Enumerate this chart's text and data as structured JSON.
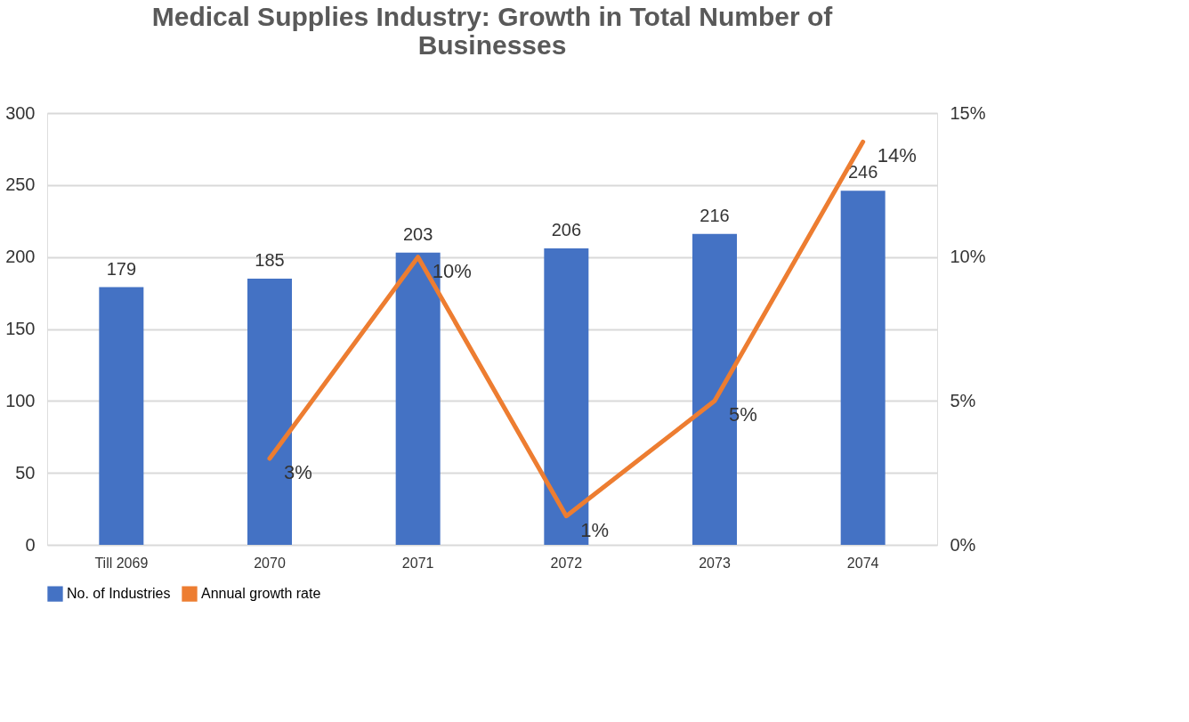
{
  "chart_data": {
    "type": "bar",
    "title": "Medical Supplies Industry: Growth in Total Number of Businesses",
    "categories": [
      "Till 2069",
      "2070",
      "2071",
      "2072",
      "2073",
      "2074"
    ],
    "series": [
      {
        "name": "No. of Industries",
        "color": "#4472c4",
        "values": [
          179,
          185,
          203,
          206,
          216,
          246
        ]
      },
      {
        "name": "Annual growth rate",
        "type": "line",
        "axis": "y2",
        "color": "#ed7d31",
        "values": [
          null,
          3,
          10,
          1,
          5,
          14
        ],
        "value_labels": [
          null,
          "3%",
          "10%",
          "1%",
          "5%",
          "14%"
        ]
      }
    ],
    "ylim": [
      0,
      300
    ],
    "yticks": [
      0,
      50,
      100,
      150,
      200,
      250,
      300
    ],
    "y2lim": [
      0,
      15
    ],
    "y2ticks": [
      {
        "value": 0,
        "label": "0%"
      },
      {
        "value": 5,
        "label": "5%"
      },
      {
        "value": 10,
        "label": "10%"
      },
      {
        "value": 15,
        "label": "15%"
      }
    ],
    "data_labels": true,
    "grid": "y",
    "legend": "bottom"
  }
}
